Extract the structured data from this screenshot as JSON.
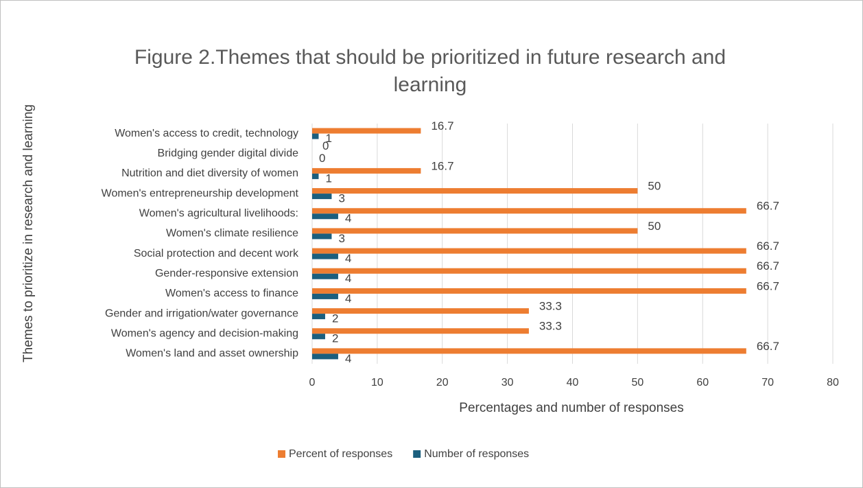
{
  "chart_data": {
    "type": "bar",
    "orientation": "horizontal",
    "title": "Figure 2.Themes that should be prioritized in future research and learning",
    "x_label": "Percentages and number of responses",
    "y_label": "Themes to prioritize in research and learning",
    "categories": [
      "Women's access to credit, technology",
      "Bridging gender digital divide",
      "Nutrition and diet diversity of women",
      "Women's entrepreneurship development",
      "Women's agricultural livelihoods:",
      "Women's climate resilience",
      "Social protection and decent work",
      "Gender-responsive extension",
      "Women's access to finance",
      "Gender and irrigation/water governance",
      "Women's agency and decision-making",
      "Women's land and asset ownership"
    ],
    "series": [
      {
        "name": "Percent of responses",
        "color": "#ed7d31",
        "values": [
          16.7,
          0,
          16.7,
          50,
          66.7,
          50,
          66.7,
          66.7,
          66.7,
          33.3,
          33.3,
          66.7
        ]
      },
      {
        "name": "Number of responses",
        "color": "#1b5f7e",
        "values": [
          1,
          0,
          1,
          3,
          4,
          3,
          4,
          4,
          4,
          2,
          2,
          4
        ]
      }
    ],
    "xlim": [
      0,
      80
    ],
    "xticks": [
      0,
      10,
      20,
      30,
      40,
      50,
      60,
      70,
      80
    ],
    "grid": true,
    "legend": "bottom"
  }
}
